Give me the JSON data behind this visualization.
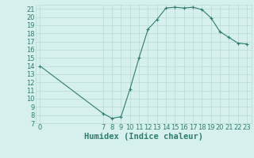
{
  "x": [
    0,
    7,
    8,
    9,
    10,
    11,
    12,
    13,
    14,
    15,
    16,
    17,
    18,
    19,
    20,
    21,
    22,
    23
  ],
  "y": [
    14,
    8.2,
    7.6,
    7.8,
    11.2,
    15.0,
    18.5,
    19.7,
    21.1,
    21.2,
    21.1,
    21.2,
    20.9,
    19.9,
    18.2,
    17.5,
    16.8,
    16.7
  ],
  "line_color": "#2e7d6e",
  "marker": "+",
  "bg_color": "#d6f0ee",
  "grid_color": "#b8d8d4",
  "xlabel": "Humidex (Indice chaleur)",
  "xlim": [
    -0.5,
    23.5
  ],
  "ylim": [
    7,
    21.5
  ],
  "xticks": [
    0,
    7,
    8,
    9,
    10,
    11,
    12,
    13,
    14,
    15,
    16,
    17,
    18,
    19,
    20,
    21,
    22,
    23
  ],
  "yticks": [
    7,
    8,
    9,
    10,
    11,
    12,
    13,
    14,
    15,
    16,
    17,
    18,
    19,
    20,
    21
  ],
  "font_color": "#2e7d6e",
  "tick_fontsize": 6.0,
  "xlabel_fontsize": 7.5
}
